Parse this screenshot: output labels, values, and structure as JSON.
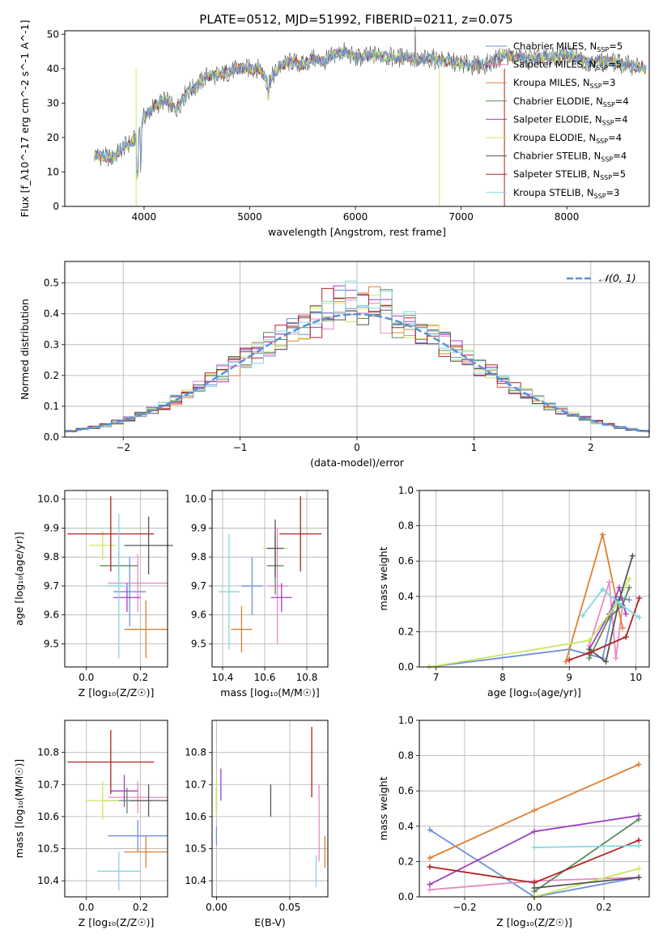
{
  "title": "PLATE=0512, MJD=51992, FIBERID=0211, z=0.075",
  "colors": {
    "Chabrier MILES": "#6f8fdc",
    "Salpeter MILES": "#e78ac3",
    "Kroupa MILES": "#e08030",
    "Chabrier ELODIE": "#5a8a5a",
    "Salpeter ELODIE": "#a040c0",
    "Kroupa ELODIE": "#c8e860",
    "Chabrier STELIB": "#555555",
    "Salpeter STELIB": "#b22222",
    "Kroupa STELIB": "#80d8e0",
    "normal": "#5b8fd9"
  },
  "chart_data": [
    {
      "id": "spectrum",
      "type": "line",
      "xlabel": "wavelength [Angstrom, rest frame]",
      "ylabel": "Flux [f_λ10^-17 erg cm^-2 s^-1 A^-1]",
      "xlim": [
        3250,
        8780
      ],
      "ylim": [
        0,
        51
      ],
      "xticks": [
        "4000",
        "5000",
        "6000",
        "7000",
        "8000"
      ],
      "yticks": [
        "0",
        "10",
        "20",
        "30",
        "40",
        "50"
      ],
      "continuum": [
        [
          3530,
          15
        ],
        [
          3700,
          14
        ],
        [
          3800,
          17
        ],
        [
          3900,
          19
        ],
        [
          3960,
          22
        ],
        [
          4000,
          26
        ],
        [
          4100,
          29
        ],
        [
          4200,
          31
        ],
        [
          4300,
          28
        ],
        [
          4400,
          33
        ],
        [
          4500,
          35
        ],
        [
          4600,
          38
        ],
        [
          4700,
          38
        ],
        [
          4800,
          39
        ],
        [
          4900,
          40
        ],
        [
          5000,
          40
        ],
        [
          5100,
          40
        ],
        [
          5170,
          36
        ],
        [
          5300,
          41
        ],
        [
          5400,
          42
        ],
        [
          5500,
          41
        ],
        [
          5600,
          43
        ],
        [
          5700,
          42
        ],
        [
          5800,
          44
        ],
        [
          5900,
          45
        ],
        [
          6000,
          43
        ],
        [
          6200,
          44
        ],
        [
          6400,
          43
        ],
        [
          6500,
          44
        ],
        [
          6560,
          42
        ],
        [
          6700,
          43
        ],
        [
          6900,
          42
        ],
        [
          7100,
          41
        ],
        [
          7200,
          41
        ],
        [
          7300,
          42
        ],
        [
          7400,
          44
        ],
        [
          7600,
          43
        ],
        [
          7800,
          43
        ],
        [
          8000,
          44
        ],
        [
          8200,
          42
        ],
        [
          8400,
          42
        ],
        [
          8600,
          41
        ],
        [
          8750,
          40
        ]
      ],
      "legend": [
        {
          "name": "Chabrier MILES",
          "n": "5"
        },
        {
          "name": "Salpeter MILES",
          "n": "5"
        },
        {
          "name": "Kroupa MILES",
          "n": "3"
        },
        {
          "name": "Chabrier ELODIE",
          "n": "4"
        },
        {
          "name": "Salpeter ELODIE",
          "n": "4"
        },
        {
          "name": "Kroupa ELODIE",
          "n": "4"
        },
        {
          "name": "Chabrier STELIB",
          "n": "4"
        },
        {
          "name": "Salpeter STELIB",
          "n": "5"
        },
        {
          "name": "Kroupa STELIB",
          "n": "3"
        }
      ],
      "legend_sub": "SSP",
      "legend_position": "upper right"
    },
    {
      "id": "residuals",
      "type": "histogram",
      "xlabel": "(data-model)/error",
      "ylabel": "Normed distribution",
      "xlim": [
        -2.5,
        2.5
      ],
      "ylim": [
        0,
        0.57
      ],
      "xticks": [
        "−2",
        "−1",
        "0",
        "1",
        "2"
      ],
      "yticks": [
        "0.0",
        "0.1",
        "0.2",
        "0.3",
        "0.4",
        "0.5"
      ],
      "bin_width": 0.1,
      "legend": "𝒩(0, 1)",
      "legend_position": "upper right"
    },
    {
      "id": "age_vs_Z",
      "type": "scatter",
      "xlabel": "Z [log₁₀(Z/Z☉)]",
      "ylabel": "age  [log₁₀(age/yr)]",
      "xlim": [
        -0.08,
        0.3
      ],
      "ylim": [
        9.42,
        10.03
      ],
      "xticks": [
        "0.0",
        "0.2"
      ],
      "yticks": [
        "9.5",
        "9.6",
        "9.7",
        "9.8",
        "9.9",
        "10.0"
      ],
      "points": [
        {
          "model": "Chabrier MILES",
          "x": 0.16,
          "y": 9.68,
          "xerr": 0.06,
          "yerr": 0.12
        },
        {
          "model": "Salpeter MILES",
          "x": 0.19,
          "y": 9.71,
          "xerr": 0.11,
          "yerr": 0.1
        },
        {
          "model": "Kroupa MILES",
          "x": 0.22,
          "y": 9.55,
          "xerr": 0.08,
          "yerr": 0.1
        },
        {
          "model": "Chabrier ELODIE",
          "x": 0.12,
          "y": 9.77,
          "xerr": 0.07,
          "yerr": 0.05
        },
        {
          "model": "Salpeter ELODIE",
          "x": 0.15,
          "y": 9.66,
          "xerr": 0.05,
          "yerr": 0.05
        },
        {
          "model": "Kroupa ELODIE",
          "x": 0.06,
          "y": 9.84,
          "xerr": 0.05,
          "yerr": 0.05
        },
        {
          "model": "Chabrier STELIB",
          "x": 0.23,
          "y": 9.84,
          "xerr": 0.09,
          "yerr": 0.1
        },
        {
          "model": "Salpeter STELIB",
          "x": 0.09,
          "y": 9.88,
          "xerr": 0.16,
          "yerr": 0.13
        },
        {
          "model": "Kroupa STELIB",
          "x": 0.12,
          "y": 9.7,
          "xerr": 0.04,
          "yerr": 0.25
        }
      ]
    },
    {
      "id": "age_vs_mass",
      "type": "scatter",
      "xlabel": "mass [log₁₀(M/M☉)]",
      "ylabel": "",
      "xlim": [
        10.35,
        10.9
      ],
      "ylim": [
        9.42,
        10.03
      ],
      "xticks": [
        "10.4",
        "10.6",
        "10.8"
      ],
      "yticks": [
        "9.5",
        "9.6",
        "9.7",
        "9.8",
        "9.9",
        "10.0"
      ],
      "points": [
        {
          "model": "Chabrier MILES",
          "x": 10.54,
          "y": 9.7,
          "xerr": 0.05,
          "yerr": 0.1
        },
        {
          "model": "Salpeter MILES",
          "x": 10.66,
          "y": 9.7,
          "xerr": 0.05,
          "yerr": 0.2
        },
        {
          "model": "Kroupa MILES",
          "x": 10.49,
          "y": 9.55,
          "xerr": 0.05,
          "yerr": 0.08
        },
        {
          "model": "Chabrier ELODIE",
          "x": 10.65,
          "y": 9.77,
          "xerr": 0.04,
          "yerr": 0.1
        },
        {
          "model": "Salpeter ELODIE",
          "x": 10.68,
          "y": 9.66,
          "xerr": 0.05,
          "yerr": 0.05
        },
        {
          "model": "Kroupa ELODIE",
          "x": 10.65,
          "y": 9.83,
          "xerr": 0.06,
          "yerr": 0.05
        },
        {
          "model": "Chabrier STELIB",
          "x": 10.65,
          "y": 9.83,
          "xerr": 0.04,
          "yerr": 0.1
        },
        {
          "model": "Salpeter STELIB",
          "x": 10.77,
          "y": 9.88,
          "xerr": 0.1,
          "yerr": 0.13
        },
        {
          "model": "Kroupa STELIB",
          "x": 10.43,
          "y": 9.68,
          "xerr": 0.05,
          "yerr": 0.2
        }
      ]
    },
    {
      "id": "weight_vs_age",
      "type": "line",
      "xlabel": "age  [log₁₀(age/yr)]",
      "ylabel": "mass weight",
      "xlim": [
        6.75,
        10.2
      ],
      "ylim": [
        0,
        1
      ],
      "xticks": [
        "7",
        "8",
        "9",
        "10"
      ],
      "yticks": [
        "0.0",
        "0.2",
        "0.4",
        "0.6",
        "0.8",
        "1.0"
      ],
      "series": [
        {
          "model": "Chabrier MILES",
          "x": [
            6.9,
            9.0,
            9.5,
            9.7,
            9.9
          ],
          "y": [
            0.0,
            0.1,
            0.05,
            0.4,
            0.38
          ]
        },
        {
          "model": "Salpeter MILES",
          "x": [
            9.3,
            9.6,
            9.7,
            9.8
          ],
          "y": [
            0.12,
            0.48,
            0.05,
            0.35
          ]
        },
        {
          "model": "Kroupa MILES",
          "x": [
            8.95,
            9.5,
            9.8
          ],
          "y": [
            0.03,
            0.75,
            0.22
          ]
        },
        {
          "model": "Chabrier ELODIE",
          "x": [
            9.3,
            9.6,
            9.8,
            9.9
          ],
          "y": [
            0.05,
            0.28,
            0.35,
            0.45
          ]
        },
        {
          "model": "Salpeter ELODIE",
          "x": [
            9.3,
            9.6,
            9.75,
            9.85
          ],
          "y": [
            0.1,
            0.3,
            0.45,
            0.3
          ]
        },
        {
          "model": "Kroupa ELODIE",
          "x": [
            6.9,
            9.3,
            9.7,
            9.9
          ],
          "y": [
            0.0,
            0.15,
            0.35,
            0.5
          ]
        },
        {
          "model": "Chabrier STELIB",
          "x": [
            9.3,
            9.55,
            9.75,
            9.95
          ],
          "y": [
            0.1,
            0.03,
            0.38,
            0.63
          ]
        },
        {
          "model": "Salpeter STELIB",
          "x": [
            9.0,
            9.3,
            9.85,
            10.05
          ],
          "y": [
            0.04,
            0.08,
            0.17,
            0.39
          ]
        },
        {
          "model": "Kroupa STELIB",
          "x": [
            9.2,
            9.5,
            9.75,
            10.05
          ],
          "y": [
            0.29,
            0.44,
            0.36,
            0.28
          ]
        }
      ]
    },
    {
      "id": "mass_vs_Z",
      "type": "scatter",
      "xlabel": "Z [log₁₀(Z/Z☉)]",
      "ylabel": "mass [log₁₀(M/M☉)]",
      "xlim": [
        -0.08,
        0.3
      ],
      "ylim": [
        10.35,
        10.9
      ],
      "xticks": [
        "0.0",
        "0.2"
      ],
      "yticks": [
        "10.4",
        "10.5",
        "10.6",
        "10.7",
        "10.8"
      ],
      "points": [
        {
          "model": "Chabrier MILES",
          "x": 0.19,
          "y": 10.54,
          "xerr": 0.11,
          "yerr": 0.05
        },
        {
          "model": "Salpeter MILES",
          "x": 0.19,
          "y": 10.66,
          "xerr": 0.11,
          "yerr": 0.05
        },
        {
          "model": "Kroupa MILES",
          "x": 0.22,
          "y": 10.49,
          "xerr": 0.08,
          "yerr": 0.05
        },
        {
          "model": "Chabrier ELODIE",
          "x": 0.15,
          "y": 10.65,
          "xerr": 0.09,
          "yerr": 0.04
        },
        {
          "model": "Salpeter ELODIE",
          "x": 0.14,
          "y": 10.68,
          "xerr": 0.05,
          "yerr": 0.05
        },
        {
          "model": "Kroupa ELODIE",
          "x": 0.06,
          "y": 10.65,
          "xerr": 0.06,
          "yerr": 0.06
        },
        {
          "model": "Chabrier STELIB",
          "x": 0.23,
          "y": 10.65,
          "xerr": 0.07,
          "yerr": 0.05
        },
        {
          "model": "Salpeter STELIB",
          "x": 0.09,
          "y": 10.77,
          "xerr": 0.16,
          "yerr": 0.1
        },
        {
          "model": "Kroupa STELIB",
          "x": 0.12,
          "y": 10.43,
          "xerr": 0.08,
          "yerr": 0.06
        }
      ]
    },
    {
      "id": "mass_vs_ebv",
      "type": "scatter",
      "xlabel": "E(B-V)",
      "ylabel": "",
      "xlim": [
        -0.003,
        0.076
      ],
      "ylim": [
        10.35,
        10.9
      ],
      "xticks": [
        "0.00",
        "0.05"
      ],
      "yticks": [
        "10.4",
        "10.5",
        "10.6",
        "10.7",
        "10.8"
      ],
      "points": [
        {
          "model": "Chabrier MILES",
          "x": 0.0,
          "y": 10.54,
          "xerr": 0,
          "yerr": 0.03
        },
        {
          "model": "Salpeter MILES",
          "x": 0.07,
          "y": 10.58,
          "xerr": 0,
          "yerr": 0.12
        },
        {
          "model": "Kroupa MILES",
          "x": 0.074,
          "y": 10.49,
          "xerr": 0,
          "yerr": 0.05
        },
        {
          "model": "Chabrier ELODIE",
          "x": 0.0,
          "y": 10.65,
          "xerr": 0,
          "yerr": 0.04
        },
        {
          "model": "Salpeter ELODIE",
          "x": 0.003,
          "y": 10.7,
          "xerr": 0,
          "yerr": 0.05
        },
        {
          "model": "Kroupa ELODIE",
          "x": 0.0,
          "y": 10.66,
          "xerr": 0,
          "yerr": 0.06
        },
        {
          "model": "Chabrier STELIB",
          "x": 0.037,
          "y": 10.65,
          "xerr": 0,
          "yerr": 0.05
        },
        {
          "model": "Salpeter STELIB",
          "x": 0.065,
          "y": 10.77,
          "xerr": 0,
          "yerr": 0.11
        },
        {
          "model": "Kroupa STELIB",
          "x": 0.068,
          "y": 10.43,
          "xerr": 0,
          "yerr": 0.05
        }
      ]
    },
    {
      "id": "weight_vs_Z",
      "type": "line",
      "xlabel": "Z [log₁₀(Z/Z☉)]",
      "ylabel": "mass weight",
      "xlim": [
        -0.33,
        0.33
      ],
      "ylim": [
        0,
        1
      ],
      "xticks": [
        "−0.2",
        "0.0",
        "0.2"
      ],
      "yticks": [
        "0.0",
        "0.2",
        "0.4",
        "0.6",
        "0.8",
        "1.0"
      ],
      "series": [
        {
          "model": "Chabrier MILES",
          "x": [
            -0.3,
            0.0,
            0.3
          ],
          "y": [
            0.38,
            0.0,
            0.11
          ]
        },
        {
          "model": "Salpeter MILES",
          "x": [
            -0.3,
            0.0,
            0.3
          ],
          "y": [
            0.04,
            0.09,
            0.11
          ]
        },
        {
          "model": "Kroupa MILES",
          "x": [
            -0.3,
            0.0,
            0.3
          ],
          "y": [
            0.22,
            0.49,
            0.75
          ]
        },
        {
          "model": "Chabrier ELODIE",
          "x": [
            0.0,
            0.3
          ],
          "y": [
            0.03,
            0.44
          ]
        },
        {
          "model": "Salpeter ELODIE",
          "x": [
            -0.3,
            0.0,
            0.3
          ],
          "y": [
            0.07,
            0.37,
            0.46
          ]
        },
        {
          "model": "Kroupa ELODIE",
          "x": [
            0.0,
            0.3
          ],
          "y": [
            0.0,
            0.16
          ]
        },
        {
          "model": "Chabrier STELIB",
          "x": [
            0.0,
            0.3
          ],
          "y": [
            0.05,
            0.11
          ]
        },
        {
          "model": "Salpeter STELIB",
          "x": [
            -0.3,
            0.0,
            0.3
          ],
          "y": [
            0.17,
            0.08,
            0.32
          ]
        },
        {
          "model": "Kroupa STELIB",
          "x": [
            0.0,
            0.3
          ],
          "y": [
            0.28,
            0.29
          ]
        }
      ]
    }
  ]
}
